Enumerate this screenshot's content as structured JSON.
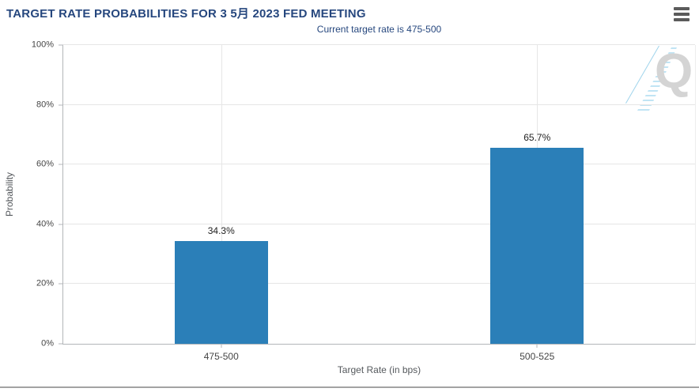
{
  "header": {
    "title": "TARGET RATE PROBABILITIES FOR 3 5月 2023 FED MEETING"
  },
  "subtitle": "Current target rate is 475-500",
  "watermark": {
    "letter": "Q"
  },
  "chart_data": {
    "type": "bar",
    "title": "TARGET RATE PROBABILITIES FOR 3 5月 2023 FED MEETING",
    "subtitle": "Current target rate is 475-500",
    "categories": [
      "475-500",
      "500-525"
    ],
    "values": [
      34.3,
      65.7
    ],
    "value_labels": [
      "34.3%",
      "65.7%"
    ],
    "xlabel": "Target Rate (in bps)",
    "ylabel": "Probability",
    "ylim": [
      0,
      100
    ],
    "yticks": [
      0,
      20,
      40,
      60,
      80,
      100
    ],
    "ytick_labels": [
      "0%",
      "20%",
      "40%",
      "60%",
      "80%",
      "100%"
    ],
    "grid": true,
    "legend": "none",
    "bar_color": "#2b7fb8",
    "title_color": "#26477e",
    "accent_color": "#26477e"
  }
}
